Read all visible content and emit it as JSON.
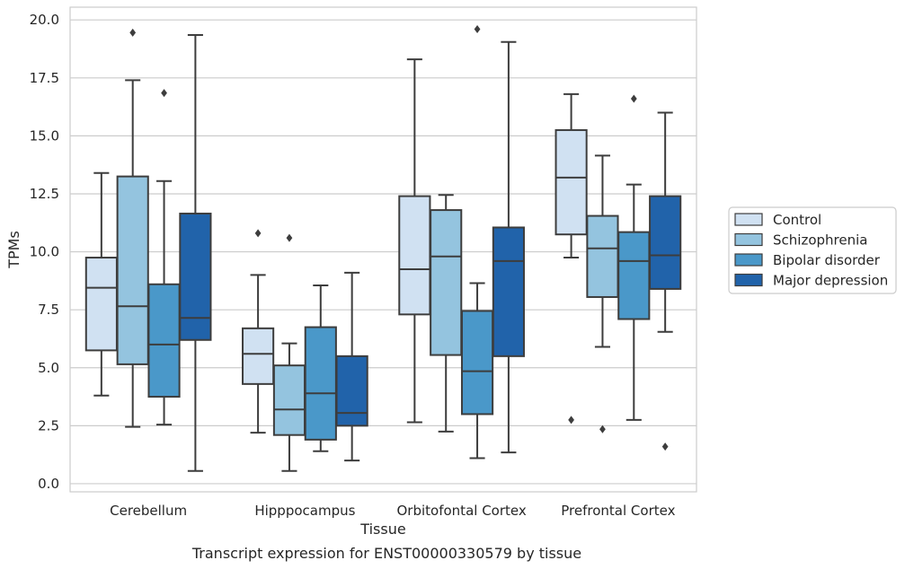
{
  "chart_data": {
    "type": "box",
    "xlabel": "Tissue",
    "ylabel": "TPMs",
    "caption": "Transcript expression for ENST00000330579 by tissue",
    "ylim": [
      -0.35,
      20.55
    ],
    "yticks": [
      0.0,
      2.5,
      5.0,
      7.5,
      10.0,
      12.5,
      15.0,
      17.5,
      20.0
    ],
    "ytick_labels": [
      "0.0",
      "2.5",
      "5.0",
      "7.5",
      "10.0",
      "12.5",
      "15.0",
      "17.5",
      "20.0"
    ],
    "grid": "horizontal",
    "legend_position": "right",
    "categories": [
      "Cerebellum",
      "Hipppocampus",
      "Orbitofontal Cortex",
      "Prefrontal Cortex"
    ],
    "series": [
      {
        "name": "Control",
        "color": "#d0e1f2",
        "boxes": [
          {
            "whislo": 3.8,
            "q1": 5.75,
            "med": 8.45,
            "q3": 9.75,
            "whishi": 13.4,
            "fliers": []
          },
          {
            "whislo": 2.2,
            "q1": 4.3,
            "med": 5.6,
            "q3": 6.7,
            "whishi": 9.0,
            "fliers": [
              10.8
            ]
          },
          {
            "whislo": 2.65,
            "q1": 7.3,
            "med": 9.25,
            "q3": 12.4,
            "whishi": 18.3,
            "fliers": []
          },
          {
            "whislo": 9.75,
            "q1": 10.75,
            "med": 13.2,
            "q3": 15.25,
            "whishi": 16.8,
            "fliers": [
              2.75
            ]
          }
        ]
      },
      {
        "name": "Schizophrenia",
        "color": "#94c4df",
        "boxes": [
          {
            "whislo": 2.45,
            "q1": 5.15,
            "med": 7.65,
            "q3": 13.25,
            "whishi": 17.4,
            "fliers": [
              19.45
            ]
          },
          {
            "whislo": 0.55,
            "q1": 2.1,
            "med": 3.2,
            "q3": 5.1,
            "whishi": 6.05,
            "fliers": [
              10.6
            ]
          },
          {
            "whislo": 2.25,
            "q1": 5.55,
            "med": 9.8,
            "q3": 11.8,
            "whishi": 12.45,
            "fliers": []
          },
          {
            "whislo": 5.9,
            "q1": 8.05,
            "med": 10.15,
            "q3": 11.55,
            "whishi": 14.15,
            "fliers": [
              2.35
            ]
          }
        ]
      },
      {
        "name": "Bipolar disorder",
        "color": "#4a98c9",
        "boxes": [
          {
            "whislo": 2.55,
            "q1": 3.75,
            "med": 6.0,
            "q3": 8.6,
            "whishi": 13.05,
            "fliers": [
              16.85
            ]
          },
          {
            "whislo": 1.4,
            "q1": 1.9,
            "med": 3.9,
            "q3": 6.75,
            "whishi": 8.55,
            "fliers": []
          },
          {
            "whislo": 1.1,
            "q1": 3.0,
            "med": 4.85,
            "q3": 7.45,
            "whishi": 8.65,
            "fliers": [
              19.6
            ]
          },
          {
            "whislo": 2.75,
            "q1": 7.1,
            "med": 9.6,
            "q3": 10.85,
            "whishi": 12.9,
            "fliers": [
              16.6
            ]
          }
        ]
      },
      {
        "name": "Major depression",
        "color": "#2163aa",
        "boxes": [
          {
            "whislo": 0.55,
            "q1": 6.2,
            "med": 7.15,
            "q3": 11.65,
            "whishi": 19.35,
            "fliers": []
          },
          {
            "whislo": 1.0,
            "q1": 2.5,
            "med": 3.05,
            "q3": 5.5,
            "whishi": 9.1,
            "fliers": []
          },
          {
            "whislo": 1.35,
            "q1": 5.5,
            "med": 9.6,
            "q3": 11.05,
            "whishi": 19.05,
            "fliers": []
          },
          {
            "whislo": 6.55,
            "q1": 8.4,
            "med": 9.85,
            "q3": 12.4,
            "whishi": 16.0,
            "fliers": [
              1.6
            ]
          }
        ]
      }
    ]
  }
}
